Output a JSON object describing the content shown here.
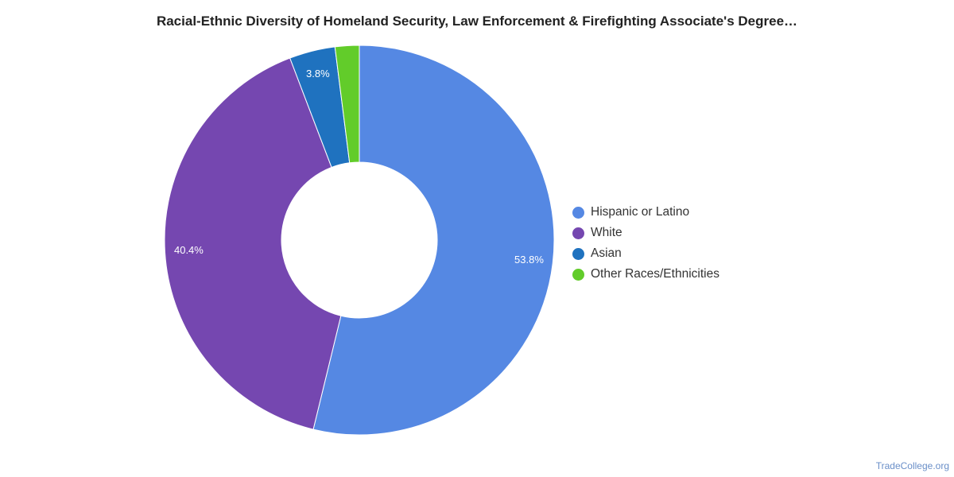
{
  "title": "Racial-Ethnic Diversity of Homeland Security, Law Enforcement & Firefighting Associate's Degree…",
  "credit": "TradeCollege.org",
  "chart_data": {
    "type": "pie",
    "title": "Racial-Ethnic Diversity of Homeland Security, Law Enforcement & Firefighting Associate's Degree…",
    "donut": true,
    "legend_position": "right",
    "categories": [
      "Hispanic or Latino",
      "White",
      "Asian",
      "Other Races/Ethnicities"
    ],
    "values": [
      53.8,
      40.4,
      3.8,
      2.0
    ],
    "data_labels": [
      "53.8%",
      "40.4%",
      "3.8%",
      ""
    ],
    "colors": [
      "#5588e3",
      "#7547b0",
      "#1f72bf",
      "#62cc2a"
    ]
  }
}
